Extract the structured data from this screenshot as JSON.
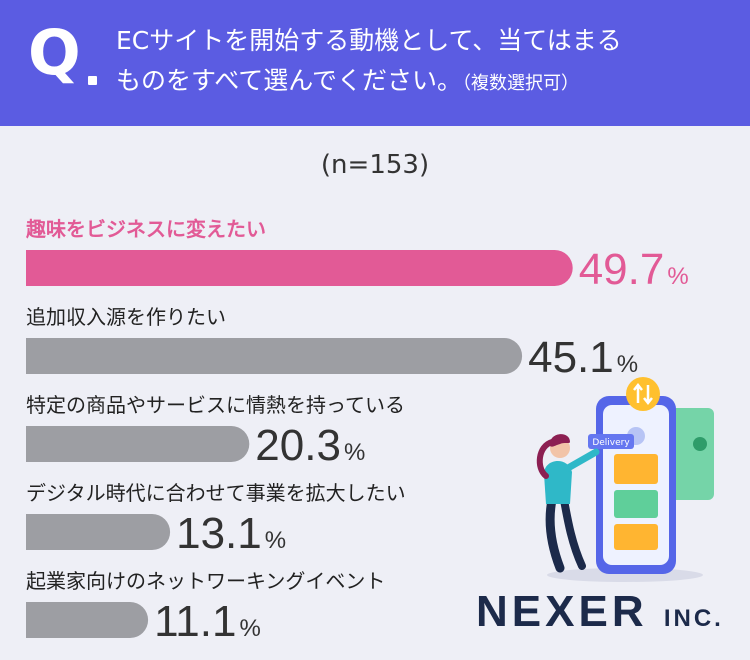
{
  "question": {
    "mark": "Q",
    "line1": "ECサイトを開始する動機として、当てはまる",
    "line2": "ものをすべて選んでください。",
    "note": "（複数選択可）"
  },
  "sample_size": "(n=153)",
  "colors": {
    "header": "#5b5ce2",
    "highlight": "#e25a96",
    "bar": "#9d9ea3",
    "background": "#eeeff6",
    "value_text": "#333333"
  },
  "chart_data": {
    "type": "bar",
    "orientation": "horizontal",
    "unit": "%",
    "categories": [
      "趣味をビジネスに変えたい",
      "追加収入源を作りたい",
      "特定の商品やサービスに情熱を持っている",
      "デジタル時代に合わせて事業を拡大したい",
      "起業家向けのネットワーキングイベント"
    ],
    "values": [
      49.7,
      45.1,
      20.3,
      13.1,
      11.1
    ],
    "value_labels": [
      "49.7",
      "45.1",
      "20.3",
      "13.1",
      "11.1"
    ],
    "highlight_index": 0
  },
  "logo": {
    "word": "NEXER",
    "suffix": "INC."
  },
  "illustration": {
    "badge": "Delivery"
  }
}
